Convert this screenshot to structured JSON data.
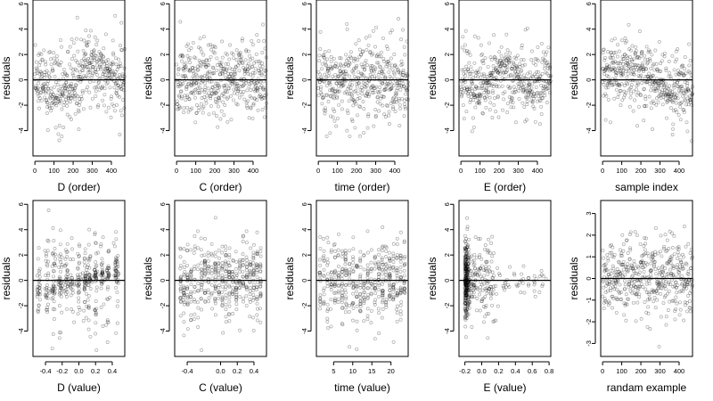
{
  "chart_data": [
    {
      "type": "scatter",
      "pattern": "order_wave_d",
      "xlabel": "D (order)",
      "ylabel": "residuals",
      "xlim": [
        -10,
        470
      ],
      "ylim": [
        -6,
        6.3
      ],
      "xticks": [
        0,
        100,
        200,
        300,
        400
      ],
      "yticks": [
        -4,
        -2,
        0,
        2,
        4,
        6
      ],
      "hline": 0,
      "n_points": 470,
      "x_range": [
        0,
        470
      ],
      "y_range": [
        -5.5,
        6
      ]
    },
    {
      "type": "scatter",
      "pattern": "order_random",
      "xlabel": "C (order)",
      "ylabel": "residuals",
      "xlim": [
        -10,
        470
      ],
      "ylim": [
        -6,
        6.3
      ],
      "xticks": [
        0,
        100,
        200,
        300,
        400
      ],
      "yticks": [
        -4,
        -2,
        0,
        2,
        4,
        6
      ],
      "hline": 0,
      "n_points": 470,
      "x_range": [
        0,
        470
      ],
      "y_range": [
        -5.5,
        6
      ]
    },
    {
      "type": "scatter",
      "pattern": "order_random",
      "xlabel": "time (order)",
      "ylabel": "residuals",
      "xlim": [
        -10,
        470
      ],
      "ylim": [
        -6,
        6.3
      ],
      "xticks": [
        0,
        100,
        200,
        300,
        400
      ],
      "yticks": [
        -4,
        -2,
        0,
        2,
        4,
        6
      ],
      "hline": 0,
      "n_points": 470,
      "x_range": [
        0,
        470
      ],
      "y_range": [
        -5.5,
        6
      ]
    },
    {
      "type": "scatter",
      "pattern": "order_wave_e",
      "xlabel": "E (order)",
      "ylabel": "residuals",
      "xlim": [
        -10,
        470
      ],
      "ylim": [
        -6,
        6.3
      ],
      "xticks": [
        0,
        100,
        200,
        300,
        400
      ],
      "yticks": [
        -4,
        -2,
        0,
        2,
        4,
        6
      ],
      "hline": 0,
      "n_points": 470,
      "x_range": [
        0,
        470
      ],
      "y_range": [
        -5.5,
        6
      ]
    },
    {
      "type": "scatter",
      "pattern": "order_wave_s",
      "xlabel": "sample index",
      "ylabel": "residuals",
      "xlim": [
        -10,
        470
      ],
      "ylim": [
        -6,
        6.3
      ],
      "xticks": [
        0,
        100,
        200,
        300,
        400
      ],
      "yticks": [
        -4,
        -2,
        0,
        2,
        4,
        6
      ],
      "hline": 0,
      "n_points": 470,
      "x_range": [
        0,
        470
      ],
      "y_range": [
        -5.5,
        6
      ]
    },
    {
      "type": "scatter",
      "pattern": "value_clustered",
      "xlabel": "D (value)",
      "ylabel": "residuals",
      "xlim": [
        -0.55,
        0.55
      ],
      "ylim": [
        -6,
        6.3
      ],
      "xticks": [
        -0.4,
        -0.2,
        0.0,
        0.2,
        0.4
      ],
      "xtick_labels": [
        "-0.4",
        "-0.2",
        "0.0",
        "0.2",
        "0.4"
      ],
      "yticks": [
        -4,
        -2,
        0,
        2,
        4,
        6
      ],
      "hline": 0,
      "n_points": 470,
      "x_range": [
        -0.5,
        0.5
      ],
      "y_range": [
        -5.5,
        6
      ]
    },
    {
      "type": "scatter",
      "pattern": "value_columns",
      "xlabel": "C (value)",
      "ylabel": "residuals",
      "xlim": [
        -0.55,
        0.55
      ],
      "ylim": [
        -6,
        6.3
      ],
      "xticks": [
        -0.4,
        0.0,
        0.2,
        0.4
      ],
      "xtick_labels": [
        "-0.4",
        "0.0",
        "0.2",
        "0.4"
      ],
      "yticks": [
        -4,
        -2,
        0,
        2,
        4,
        6
      ],
      "hline": 0,
      "n_points": 470,
      "x_range": [
        -0.5,
        0.5
      ],
      "y_range": [
        -5.5,
        6
      ]
    },
    {
      "type": "scatter",
      "pattern": "value_columns",
      "xlabel": "time (value)",
      "ylabel": "residuals",
      "xlim": [
        0.5,
        24.5
      ],
      "ylim": [
        -6,
        6.3
      ],
      "xticks": [
        5,
        10,
        15,
        20
      ],
      "xtick_labels": [
        "5",
        "10",
        "15",
        "20"
      ],
      "yticks": [
        -4,
        -2,
        0,
        2,
        4,
        6
      ],
      "hline": 0,
      "n_points": 470,
      "x_range": [
        1,
        24
      ],
      "y_range": [
        -5.5,
        6
      ]
    },
    {
      "type": "scatter",
      "pattern": "value_skewed",
      "xlabel": "E (value)",
      "ylabel": "residuals",
      "xlim": [
        -0.27,
        0.82
      ],
      "ylim": [
        -6,
        6.3
      ],
      "xticks": [
        -0.2,
        0.0,
        0.2,
        0.4,
        0.6,
        0.8
      ],
      "xtick_labels": [
        "-0.2",
        "0.0",
        "0.2",
        "0.4",
        "0.6",
        "0.8"
      ],
      "yticks": [
        -4,
        -2,
        0,
        2,
        4,
        6
      ],
      "hline": 0,
      "n_points": 470,
      "x_range": [
        -0.2,
        0.8
      ],
      "y_range": [
        -5.5,
        6
      ]
    },
    {
      "type": "scatter",
      "pattern": "order_random",
      "xlabel": "randam example",
      "ylabel": "residuals",
      "xlim": [
        -10,
        470
      ],
      "ylim": [
        -3.6,
        3.6
      ],
      "xticks": [
        0,
        100,
        200,
        300,
        400
      ],
      "yticks": [
        -3,
        -2,
        -1,
        0,
        1,
        2,
        3
      ],
      "hline": 0,
      "n_points": 470,
      "x_range": [
        0,
        470
      ],
      "y_range": [
        -3.3,
        3.3
      ]
    }
  ]
}
